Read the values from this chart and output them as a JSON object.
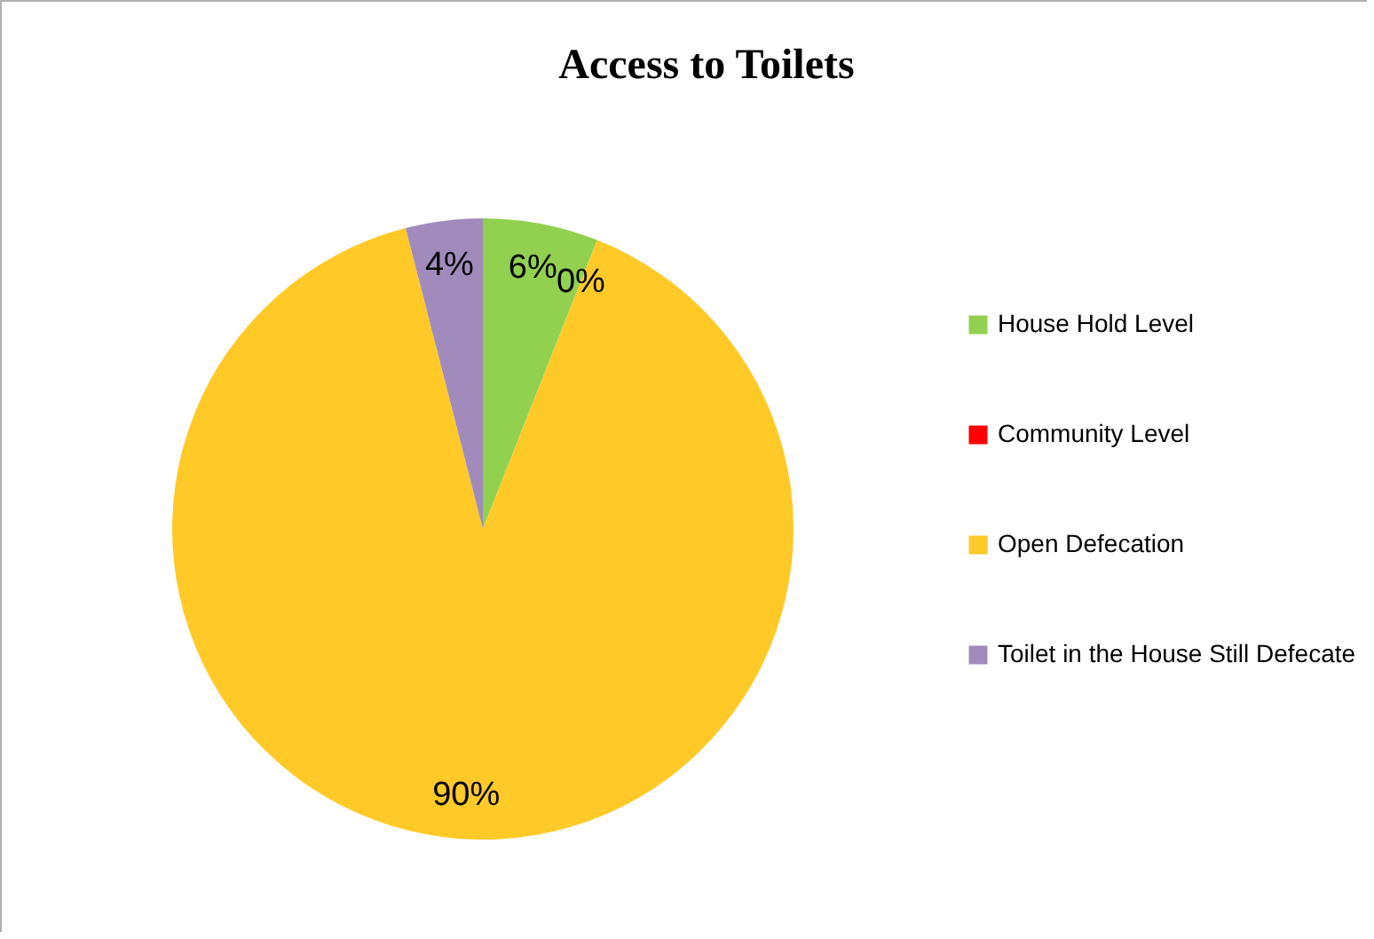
{
  "chart_data": {
    "type": "pie",
    "title": "Access to Toilets",
    "categories": [
      "House Hold Level",
      "Community Level",
      "Open Defecation",
      "Toilet in the House Still Defecate"
    ],
    "values": [
      6,
      0,
      90,
      4
    ],
    "colors": [
      "#92d050",
      "#ff0000",
      "#ffca28",
      "#a18bbd"
    ],
    "value_labels": [
      "6%",
      "0%",
      "90%",
      "4%"
    ],
    "legend": "right"
  }
}
